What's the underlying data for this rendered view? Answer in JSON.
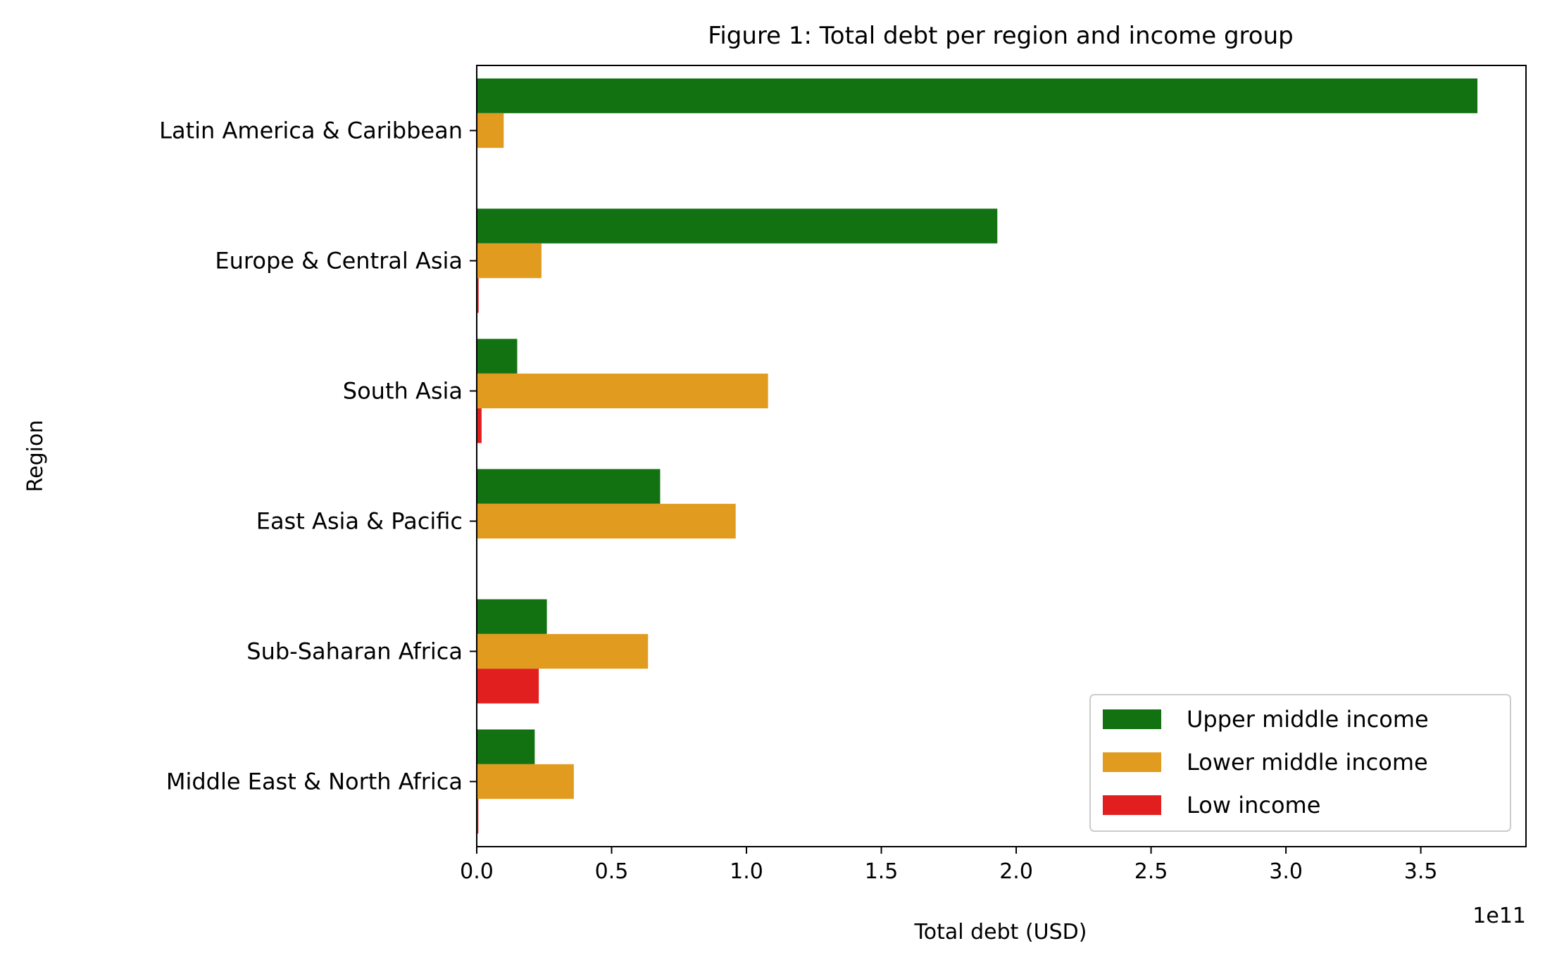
{
  "chart_data": {
    "type": "bar",
    "orientation": "horizontal",
    "title": "Figure 1: Total debt per region and income group",
    "xlabel": "Total debt (USD)",
    "ylabel": "Region",
    "x_offset_label": "1e11",
    "xlim": [
      0,
      389000000000.0
    ],
    "xticks": [
      0,
      50000000000.0,
      100000000000.0,
      150000000000.0,
      200000000000.0,
      250000000000.0,
      300000000000.0,
      350000000000.0
    ],
    "xtick_labels": [
      "0.0",
      "0.5",
      "1.0",
      "1.5",
      "2.0",
      "2.5",
      "3.0",
      "3.5"
    ],
    "categories": [
      "Latin America & Caribbean",
      "Europe & Central Asia",
      "South Asia",
      "East Asia & Pacific",
      "Sub-Saharan Africa",
      "Middle East & North Africa"
    ],
    "series": [
      {
        "name": "Upper middle income",
        "color": "#127212",
        "values": [
          371000000000.0,
          193000000000.0,
          15000000000.0,
          68000000000.0,
          26000000000.0,
          21500000000.0
        ]
      },
      {
        "name": "Lower middle income",
        "color": "#e19c20",
        "values": [
          10000000000.0,
          24000000000.0,
          108000000000.0,
          96000000000.0,
          63500000000.0,
          36000000000.0
        ]
      },
      {
        "name": "Low income",
        "color": "#e21f1f",
        "values": [
          0,
          700000000.0,
          1800000000.0,
          0,
          23000000000.0,
          600000000.0
        ]
      }
    ],
    "legend_position": "lower right",
    "grid": false
  }
}
